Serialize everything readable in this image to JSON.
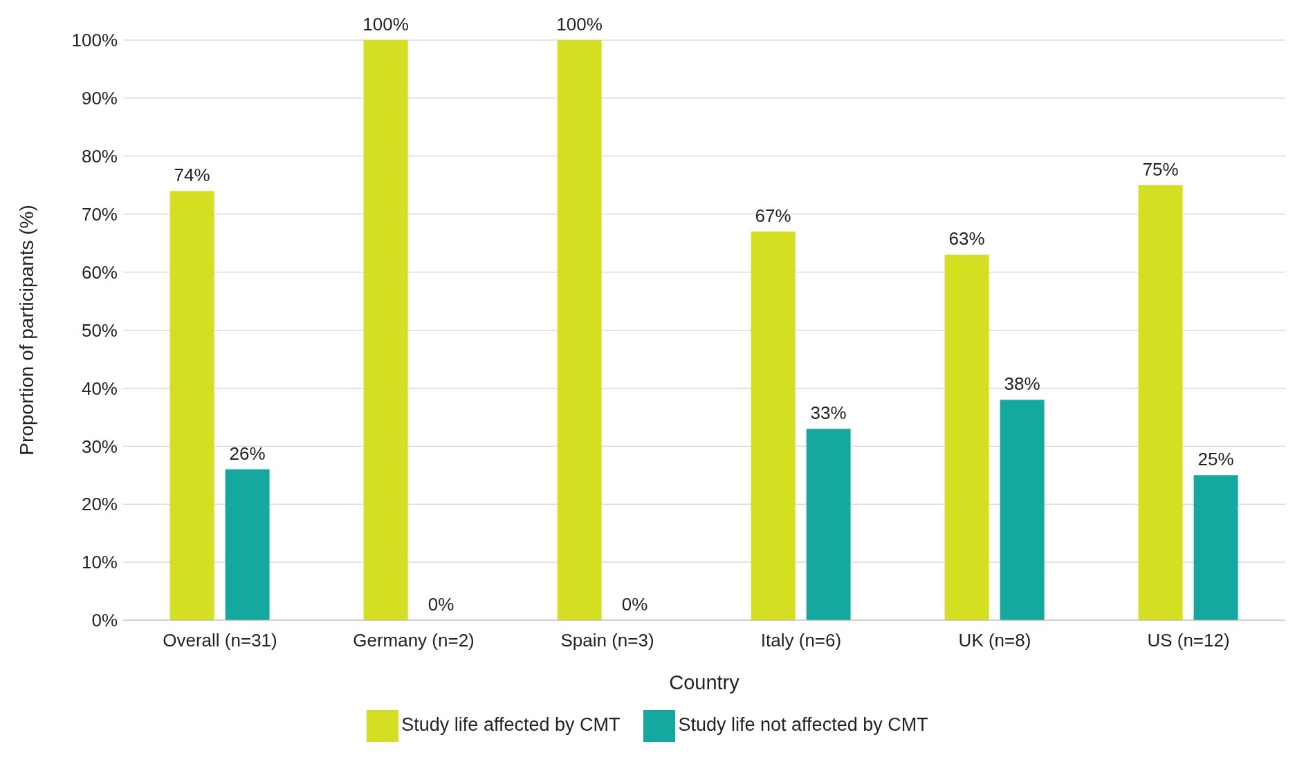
{
  "chart_data": {
    "type": "bar",
    "xlabel": "Country",
    "ylabel": "Proportion of participants (%)",
    "categories": [
      "Overall (n=31)",
      "Germany (n=2)",
      "Spain (n=3)",
      "Italy (n=6)",
      "UK (n=8)",
      "US (n=12)"
    ],
    "series": [
      {
        "name": "Study life affected by CMT",
        "color": "#d4df22",
        "values": [
          74,
          100,
          100,
          67,
          63,
          75
        ],
        "value_labels": [
          "74%",
          "100%",
          "100%",
          "67%",
          "63%",
          "75%"
        ]
      },
      {
        "name": "Study life not affected by CMT",
        "color": "#14a89e",
        "values": [
          26,
          0,
          0,
          33,
          38,
          25
        ],
        "value_labels": [
          "26%",
          "0%",
          "0%",
          "33%",
          "38%",
          "25%"
        ]
      }
    ],
    "ylim": [
      0,
      100
    ],
    "yticks": [
      {
        "value": 0,
        "label": "0%"
      },
      {
        "value": 10,
        "label": "10%"
      },
      {
        "value": 20,
        "label": "20%"
      },
      {
        "value": 30,
        "label": "30%"
      },
      {
        "value": 40,
        "label": "40%"
      },
      {
        "value": 50,
        "label": "50%"
      },
      {
        "value": 60,
        "label": "60%"
      },
      {
        "value": 70,
        "label": "70%"
      },
      {
        "value": 80,
        "label": "80%"
      },
      {
        "value": 90,
        "label": "90%"
      },
      {
        "value": 100,
        "label": "100%"
      }
    ],
    "grid": "y",
    "legend": "bottom"
  }
}
